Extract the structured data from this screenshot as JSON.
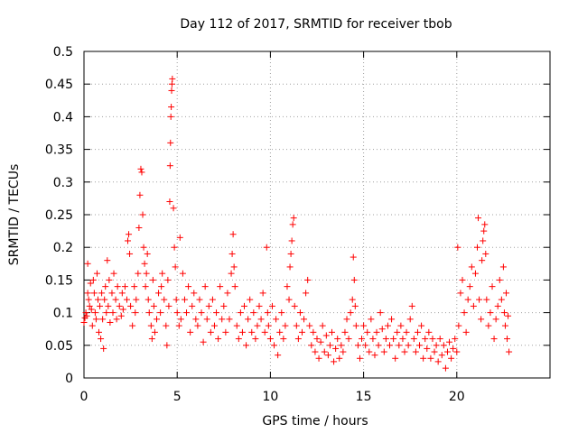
{
  "chart_data": {
    "type": "scatter",
    "title": "Day 112 of 2017, SRMTID for receiver tbob",
    "xlabel": "GPS time / hours",
    "ylabel": "SRMTID / TECUs",
    "xlim": [
      0,
      25
    ],
    "ylim": [
      0,
      0.5
    ],
    "x_ticks": [
      0,
      5,
      10,
      15,
      20
    ],
    "x_tick_labels": [
      "0",
      "5",
      "10",
      "15",
      "20"
    ],
    "y_ticks": [
      0,
      0.05,
      0.1,
      0.15,
      0.2,
      0.25,
      0.3,
      0.35,
      0.4,
      0.45,
      0.5
    ],
    "y_tick_labels": [
      "0",
      "0.05",
      "0.1",
      "0.15",
      "0.2",
      "0.25",
      "0.3",
      "0.35",
      "0.4",
      "0.45",
      "0.5"
    ],
    "grid": true,
    "marker": "+",
    "series": [
      {
        "name": "SRMTID",
        "color": "#ff0000",
        "points": [
          [
            0.0,
            0.085
          ],
          [
            0.05,
            0.092
          ],
          [
            0.1,
            0.1
          ],
          [
            0.15,
            0.095
          ],
          [
            0.2,
            0.13
          ],
          [
            0.2,
            0.175
          ],
          [
            0.25,
            0.12
          ],
          [
            0.3,
            0.11
          ],
          [
            0.35,
            0.145
          ],
          [
            0.4,
            0.105
          ],
          [
            0.45,
            0.08
          ],
          [
            0.5,
            0.15
          ],
          [
            0.55,
            0.13
          ],
          [
            0.6,
            0.1
          ],
          [
            0.65,
            0.09
          ],
          [
            0.7,
            0.16
          ],
          [
            0.75,
            0.12
          ],
          [
            0.8,
            0.07
          ],
          [
            0.85,
            0.11
          ],
          [
            0.9,
            0.06
          ],
          [
            0.95,
            0.13
          ],
          [
            1.0,
            0.09
          ],
          [
            1.05,
            0.045
          ],
          [
            1.1,
            0.12
          ],
          [
            1.15,
            0.14
          ],
          [
            1.2,
            0.1
          ],
          [
            1.25,
            0.18
          ],
          [
            1.3,
            0.11
          ],
          [
            1.35,
            0.15
          ],
          [
            1.4,
            0.085
          ],
          [
            1.5,
            0.13
          ],
          [
            1.55,
            0.1
          ],
          [
            1.6,
            0.16
          ],
          [
            1.7,
            0.12
          ],
          [
            1.75,
            0.09
          ],
          [
            1.8,
            0.14
          ],
          [
            1.9,
            0.11
          ],
          [
            2.0,
            0.095
          ],
          [
            2.05,
            0.13
          ],
          [
            2.1,
            0.105
          ],
          [
            2.2,
            0.14
          ],
          [
            2.3,
            0.12
          ],
          [
            2.35,
            0.21
          ],
          [
            2.4,
            0.22
          ],
          [
            2.45,
            0.19
          ],
          [
            2.5,
            0.11
          ],
          [
            2.6,
            0.08
          ],
          [
            2.7,
            0.14
          ],
          [
            2.75,
            0.1
          ],
          [
            2.8,
            0.12
          ],
          [
            2.9,
            0.16
          ],
          [
            2.95,
            0.23
          ],
          [
            3.0,
            0.28
          ],
          [
            3.05,
            0.32
          ],
          [
            3.1,
            0.315
          ],
          [
            3.15,
            0.25
          ],
          [
            3.2,
            0.2
          ],
          [
            3.25,
            0.175
          ],
          [
            3.3,
            0.14
          ],
          [
            3.35,
            0.16
          ],
          [
            3.4,
            0.19
          ],
          [
            3.45,
            0.12
          ],
          [
            3.5,
            0.1
          ],
          [
            3.6,
            0.08
          ],
          [
            3.65,
            0.06
          ],
          [
            3.7,
            0.15
          ],
          [
            3.75,
            0.11
          ],
          [
            3.8,
            0.07
          ],
          [
            3.9,
            0.09
          ],
          [
            4.0,
            0.13
          ],
          [
            4.1,
            0.1
          ],
          [
            4.15,
            0.14
          ],
          [
            4.2,
            0.16
          ],
          [
            4.3,
            0.12
          ],
          [
            4.4,
            0.08
          ],
          [
            4.45,
            0.05
          ],
          [
            4.5,
            0.15
          ],
          [
            4.55,
            0.11
          ],
          [
            4.6,
            0.27
          ],
          [
            4.62,
            0.325
          ],
          [
            4.64,
            0.36
          ],
          [
            4.66,
            0.4
          ],
          [
            4.68,
            0.415
          ],
          [
            4.7,
            0.44
          ],
          [
            4.72,
            0.45
          ],
          [
            4.74,
            0.458
          ],
          [
            4.8,
            0.26
          ],
          [
            4.85,
            0.2
          ],
          [
            4.9,
            0.17
          ],
          [
            4.95,
            0.12
          ],
          [
            5.0,
            0.1
          ],
          [
            5.1,
            0.08
          ],
          [
            5.15,
            0.215
          ],
          [
            5.2,
            0.09
          ],
          [
            5.3,
            0.16
          ],
          [
            5.4,
            0.12
          ],
          [
            5.5,
            0.1
          ],
          [
            5.6,
            0.14
          ],
          [
            5.7,
            0.07
          ],
          [
            5.8,
            0.11
          ],
          [
            5.9,
            0.13
          ],
          [
            6.0,
            0.09
          ],
          [
            6.1,
            0.08
          ],
          [
            6.2,
            0.12
          ],
          [
            6.3,
            0.1
          ],
          [
            6.4,
            0.055
          ],
          [
            6.5,
            0.14
          ],
          [
            6.6,
            0.09
          ],
          [
            6.7,
            0.11
          ],
          [
            6.8,
            0.07
          ],
          [
            6.9,
            0.12
          ],
          [
            7.0,
            0.08
          ],
          [
            7.1,
            0.1
          ],
          [
            7.2,
            0.06
          ],
          [
            7.3,
            0.14
          ],
          [
            7.4,
            0.09
          ],
          [
            7.5,
            0.11
          ],
          [
            7.6,
            0.07
          ],
          [
            7.7,
            0.13
          ],
          [
            7.8,
            0.09
          ],
          [
            7.9,
            0.16
          ],
          [
            7.95,
            0.19
          ],
          [
            8.0,
            0.22
          ],
          [
            8.05,
            0.17
          ],
          [
            8.1,
            0.14
          ],
          [
            8.2,
            0.08
          ],
          [
            8.3,
            0.06
          ],
          [
            8.4,
            0.1
          ],
          [
            8.5,
            0.07
          ],
          [
            8.6,
            0.11
          ],
          [
            8.7,
            0.05
          ],
          [
            8.8,
            0.09
          ],
          [
            8.9,
            0.12
          ],
          [
            9.0,
            0.07
          ],
          [
            9.1,
            0.1
          ],
          [
            9.2,
            0.06
          ],
          [
            9.3,
            0.08
          ],
          [
            9.4,
            0.11
          ],
          [
            9.5,
            0.09
          ],
          [
            9.6,
            0.13
          ],
          [
            9.7,
            0.07
          ],
          [
            9.8,
            0.2
          ],
          [
            9.85,
            0.1
          ],
          [
            9.9,
            0.08
          ],
          [
            10.0,
            0.06
          ],
          [
            10.1,
            0.11
          ],
          [
            10.2,
            0.05
          ],
          [
            10.3,
            0.09
          ],
          [
            10.4,
            0.035
          ],
          [
            10.5,
            0.07
          ],
          [
            10.6,
            0.1
          ],
          [
            10.7,
            0.06
          ],
          [
            10.8,
            0.08
          ],
          [
            10.9,
            0.14
          ],
          [
            11.0,
            0.12
          ],
          [
            11.05,
            0.17
          ],
          [
            11.1,
            0.19
          ],
          [
            11.15,
            0.21
          ],
          [
            11.2,
            0.235
          ],
          [
            11.25,
            0.245
          ],
          [
            11.3,
            0.11
          ],
          [
            11.4,
            0.08
          ],
          [
            11.5,
            0.06
          ],
          [
            11.6,
            0.1
          ],
          [
            11.7,
            0.07
          ],
          [
            11.8,
            0.09
          ],
          [
            11.9,
            0.13
          ],
          [
            12.0,
            0.15
          ],
          [
            12.1,
            0.08
          ],
          [
            12.2,
            0.05
          ],
          [
            12.3,
            0.07
          ],
          [
            12.4,
            0.04
          ],
          [
            12.5,
            0.06
          ],
          [
            12.6,
            0.03
          ],
          [
            12.7,
            0.055
          ],
          [
            12.8,
            0.08
          ],
          [
            12.9,
            0.04
          ],
          [
            13.0,
            0.065
          ],
          [
            13.1,
            0.035
          ],
          [
            13.2,
            0.05
          ],
          [
            13.3,
            0.07
          ],
          [
            13.4,
            0.025
          ],
          [
            13.5,
            0.045
          ],
          [
            13.6,
            0.06
          ],
          [
            13.7,
            0.03
          ],
          [
            13.8,
            0.05
          ],
          [
            13.9,
            0.04
          ],
          [
            14.0,
            0.07
          ],
          [
            14.1,
            0.09
          ],
          [
            14.2,
            0.06
          ],
          [
            14.3,
            0.1
          ],
          [
            14.4,
            0.12
          ],
          [
            14.45,
            0.185
          ],
          [
            14.5,
            0.15
          ],
          [
            14.55,
            0.11
          ],
          [
            14.6,
            0.08
          ],
          [
            14.7,
            0.05
          ],
          [
            14.8,
            0.03
          ],
          [
            14.9,
            0.06
          ],
          [
            15.0,
            0.08
          ],
          [
            15.1,
            0.05
          ],
          [
            15.2,
            0.07
          ],
          [
            15.3,
            0.04
          ],
          [
            15.4,
            0.09
          ],
          [
            15.5,
            0.06
          ],
          [
            15.6,
            0.035
          ],
          [
            15.7,
            0.07
          ],
          [
            15.8,
            0.05
          ],
          [
            15.9,
            0.1
          ],
          [
            16.0,
            0.075
          ],
          [
            16.1,
            0.04
          ],
          [
            16.2,
            0.06
          ],
          [
            16.3,
            0.08
          ],
          [
            16.4,
            0.05
          ],
          [
            16.5,
            0.09
          ],
          [
            16.6,
            0.06
          ],
          [
            16.7,
            0.03
          ],
          [
            16.8,
            0.07
          ],
          [
            16.9,
            0.05
          ],
          [
            17.0,
            0.08
          ],
          [
            17.1,
            0.06
          ],
          [
            17.2,
            0.04
          ],
          [
            17.3,
            0.07
          ],
          [
            17.4,
            0.05
          ],
          [
            17.5,
            0.09
          ],
          [
            17.6,
            0.11
          ],
          [
            17.7,
            0.06
          ],
          [
            17.8,
            0.04
          ],
          [
            17.9,
            0.07
          ],
          [
            18.0,
            0.05
          ],
          [
            18.1,
            0.08
          ],
          [
            18.2,
            0.03
          ],
          [
            18.3,
            0.06
          ],
          [
            18.4,
            0.045
          ],
          [
            18.5,
            0.07
          ],
          [
            18.6,
            0.03
          ],
          [
            18.7,
            0.06
          ],
          [
            18.8,
            0.04
          ],
          [
            18.9,
            0.05
          ],
          [
            19.0,
            0.025
          ],
          [
            19.1,
            0.06
          ],
          [
            19.2,
            0.035
          ],
          [
            19.3,
            0.05
          ],
          [
            19.4,
            0.015
          ],
          [
            19.5,
            0.04
          ],
          [
            19.6,
            0.055
          ],
          [
            19.7,
            0.03
          ],
          [
            19.8,
            0.045
          ],
          [
            19.9,
            0.06
          ],
          [
            20.0,
            0.04
          ],
          [
            20.05,
            0.2
          ],
          [
            20.1,
            0.08
          ],
          [
            20.2,
            0.13
          ],
          [
            20.3,
            0.15
          ],
          [
            20.4,
            0.1
          ],
          [
            20.5,
            0.07
          ],
          [
            20.6,
            0.12
          ],
          [
            20.7,
            0.14
          ],
          [
            20.8,
            0.17
          ],
          [
            20.9,
            0.11
          ],
          [
            21.0,
            0.16
          ],
          [
            21.1,
            0.2
          ],
          [
            21.15,
            0.245
          ],
          [
            21.2,
            0.12
          ],
          [
            21.3,
            0.09
          ],
          [
            21.35,
            0.18
          ],
          [
            21.4,
            0.21
          ],
          [
            21.45,
            0.225
          ],
          [
            21.5,
            0.235
          ],
          [
            21.55,
            0.19
          ],
          [
            21.6,
            0.12
          ],
          [
            21.7,
            0.08
          ],
          [
            21.8,
            0.1
          ],
          [
            21.9,
            0.14
          ],
          [
            22.0,
            0.06
          ],
          [
            22.1,
            0.09
          ],
          [
            22.2,
            0.11
          ],
          [
            22.3,
            0.15
          ],
          [
            22.4,
            0.12
          ],
          [
            22.5,
            0.17
          ],
          [
            22.55,
            0.1
          ],
          [
            22.6,
            0.08
          ],
          [
            22.65,
            0.13
          ],
          [
            22.7,
            0.06
          ],
          [
            22.75,
            0.095
          ],
          [
            22.8,
            0.04
          ]
        ]
      }
    ]
  }
}
